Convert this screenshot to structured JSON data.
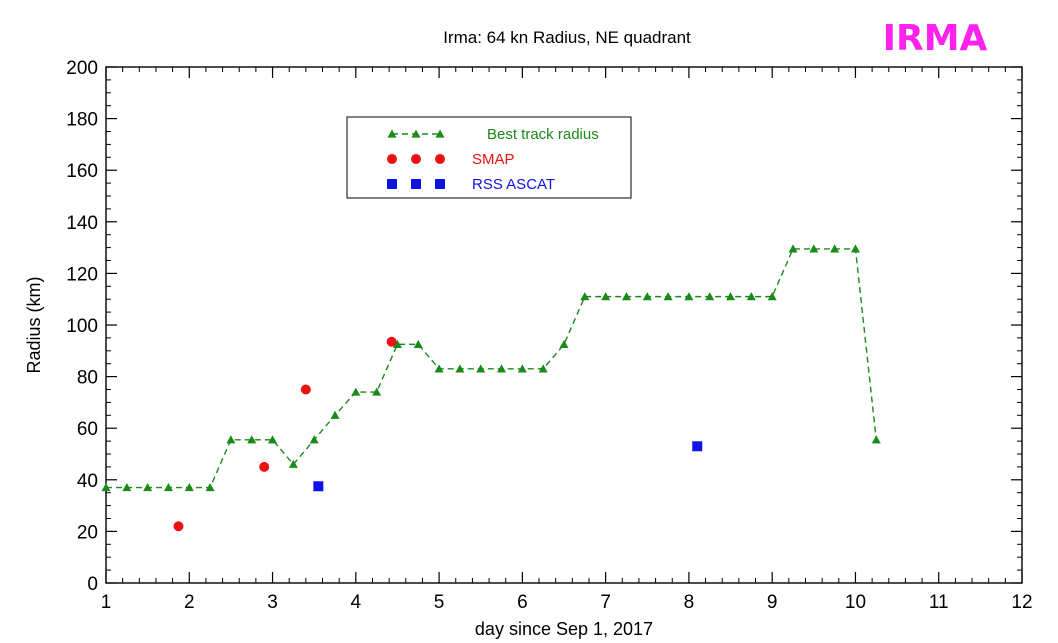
{
  "chart_data": {
    "type": "line",
    "title": "Irma: 64 kn Radius, NE quadrant",
    "badge": "IRMA",
    "xlabel": "day since Sep 1, 2017",
    "ylabel": "Radius (km)",
    "xlim": [
      1,
      12
    ],
    "ylim": [
      0,
      200
    ],
    "xticks": [
      1,
      2,
      3,
      4,
      5,
      6,
      7,
      8,
      9,
      10,
      11,
      12
    ],
    "yticks": [
      0,
      20,
      40,
      60,
      80,
      100,
      120,
      140,
      160,
      180,
      200
    ],
    "grid": false,
    "legend_position": "top-center",
    "series": [
      {
        "name": "Best track radius",
        "style": "dashed-line-triangles",
        "color": "#1a8a1a",
        "x": [
          1.0,
          1.25,
          1.5,
          1.75,
          2.0,
          2.25,
          2.5,
          2.75,
          3.0,
          3.25,
          3.5,
          3.75,
          4.0,
          4.25,
          4.5,
          4.75,
          5.0,
          5.25,
          5.5,
          5.75,
          6.0,
          6.25,
          6.5,
          6.75,
          7.0,
          7.25,
          7.5,
          7.75,
          8.0,
          8.25,
          8.5,
          8.75,
          9.0,
          9.25,
          9.5,
          9.75,
          10.0,
          10.25
        ],
        "y": [
          37,
          37,
          37,
          37,
          37,
          37,
          55.5,
          55.5,
          55.5,
          46,
          55.5,
          65,
          74,
          74,
          92.5,
          92.5,
          83,
          83,
          83,
          83,
          83,
          83,
          92.5,
          111,
          111,
          111,
          111,
          111,
          111,
          111,
          111,
          111,
          111,
          129.5,
          129.5,
          129.5,
          129.5,
          55.5
        ]
      },
      {
        "name": "SMAP",
        "style": "circles",
        "color": "#ee1111",
        "x": [
          1.87,
          2.9,
          3.4,
          4.43
        ],
        "y": [
          22,
          45,
          75,
          93.5
        ]
      },
      {
        "name": "RSS ASCAT",
        "style": "squares",
        "color": "#1111ee",
        "x": [
          3.55,
          8.1
        ],
        "y": [
          37.5,
          53
        ]
      }
    ]
  },
  "colors": {
    "badge": "#ff22ee",
    "axis": "#000000"
  }
}
